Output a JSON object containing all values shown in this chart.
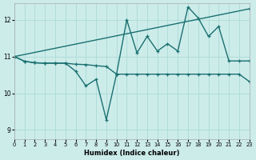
{
  "xlabel": "Humidex (Indice chaleur)",
  "bg_color": "#ccecea",
  "grid_color": "#b0ddd8",
  "line_color": "#1a7070",
  "xlim": [
    0,
    23
  ],
  "ylim": [
    8.75,
    12.45
  ],
  "xticks": [
    0,
    1,
    2,
    3,
    4,
    5,
    6,
    7,
    8,
    9,
    10,
    11,
    12,
    13,
    14,
    15,
    16,
    17,
    18,
    19,
    20,
    21,
    22,
    23
  ],
  "yticks": [
    9,
    10,
    11,
    12
  ],
  "line1_x": [
    0,
    1,
    2,
    3,
    4,
    5,
    6,
    7,
    8,
    9,
    10,
    11,
    12,
    13,
    14,
    15,
    16,
    17,
    18,
    19,
    20,
    21,
    22,
    23
  ],
  "line1_y": [
    11.0,
    10.87,
    10.83,
    10.82,
    10.82,
    10.82,
    10.79,
    10.78,
    10.75,
    10.73,
    10.52,
    10.52,
    10.52,
    10.52,
    10.52,
    10.52,
    10.52,
    10.52,
    10.52,
    10.52,
    10.52,
    10.52,
    10.52,
    10.32
  ],
  "line2_x": [
    0,
    1,
    2,
    3,
    4,
    5,
    6,
    7,
    8,
    9,
    10,
    11,
    12,
    13,
    14,
    15,
    16,
    17,
    18,
    19,
    20,
    21,
    22,
    23
  ],
  "line2_y": [
    11.0,
    10.87,
    10.83,
    10.82,
    10.82,
    10.82,
    10.6,
    10.2,
    10.38,
    9.28,
    10.52,
    12.0,
    11.1,
    11.55,
    11.15,
    11.35,
    11.15,
    12.35,
    12.05,
    11.55,
    11.82,
    10.88,
    10.88,
    10.88
  ],
  "line3_x": [
    0,
    23
  ],
  "line3_y": [
    11.0,
    12.3
  ],
  "marker_size": 3.0,
  "line_width": 1.0
}
